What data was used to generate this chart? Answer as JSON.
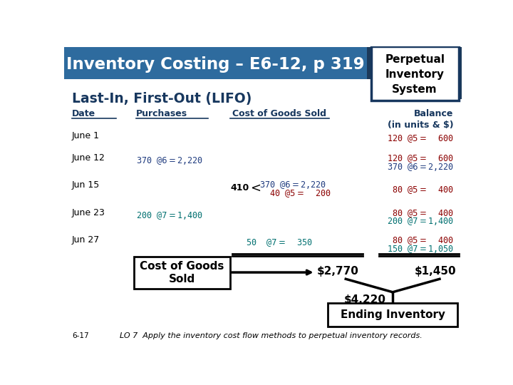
{
  "title": "Inventory Costing – E6-12, p 319",
  "subtitle": "Last-In, First-Out (LIFO)",
  "box_title": "Perpetual\nInventory\nSystem",
  "bg_color": "#ffffff",
  "header_bg": "#2e6b9e",
  "header_text_color": "#ffffff",
  "subtitle_color": "#17375e",
  "col_header_color": "#17375e",
  "footer": "6-17",
  "footer_italic": "LO 7  Apply the inventory cost flow methods to perpetual inventory records.",
  "cogs_box_label": "Cost of Goods\nSold",
  "cogs_total": "$2,770",
  "balance_total": "$1,450",
  "combined_total": "$4,220",
  "ending_inv_label": "Ending Inventory"
}
